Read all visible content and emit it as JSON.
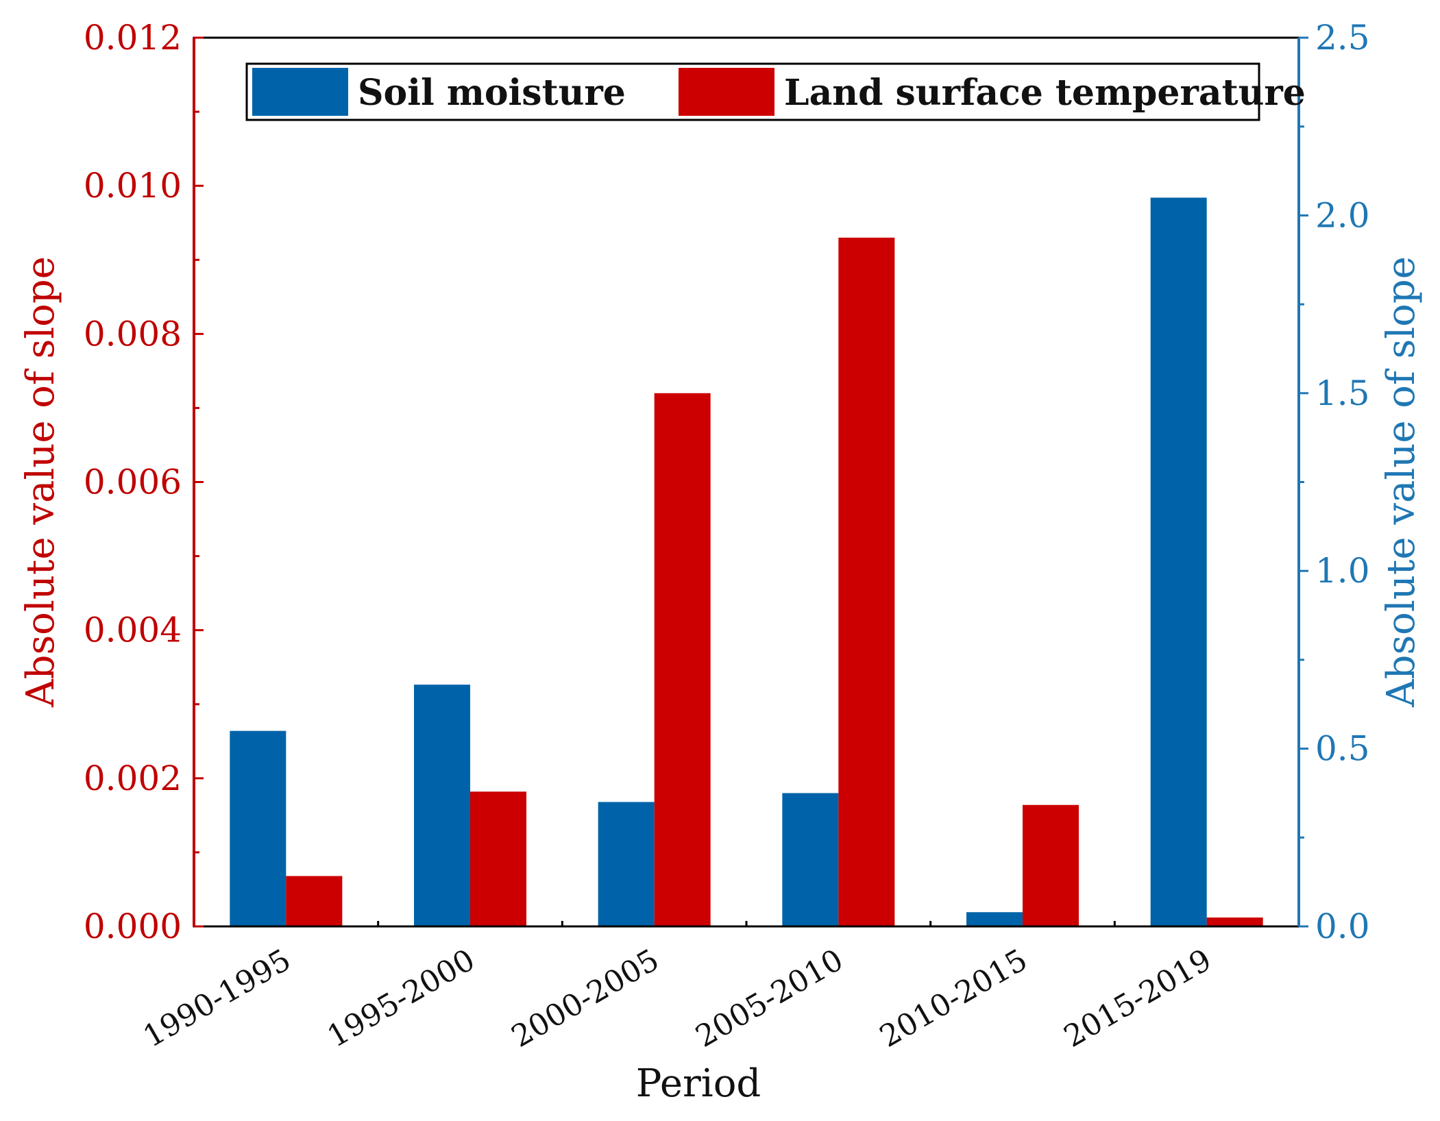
{
  "chart_data": {
    "type": "bar",
    "categories": [
      "1990-1995",
      "1995-2000",
      "2000-2005",
      "2005-2010",
      "2010-2015",
      "2015-2019"
    ],
    "series": [
      {
        "name": "Soil moisture",
        "axis": "right",
        "color": "#0063a9",
        "values": [
          0.55,
          0.68,
          0.35,
          0.375,
          0.04,
          2.05
        ]
      },
      {
        "name": "Land surface temperature",
        "axis": "left",
        "color": "#cc0000",
        "values": [
          0.00068,
          0.00182,
          0.0072,
          0.0093,
          0.00164,
          0.00012
        ]
      }
    ],
    "xlabel": "Period",
    "ylabel_left": "Absolute value of slope",
    "ylabel_right": "Absolute value of slope",
    "ylim_left": [
      0,
      0.012
    ],
    "ylim_right": [
      0,
      2.5
    ],
    "yticks_left": [
      "0.000",
      "0.002",
      "0.004",
      "0.006",
      "0.008",
      "0.010",
      "0.012"
    ],
    "yticks_right": [
      "0.0",
      "0.5",
      "1.0",
      "1.5",
      "2.0",
      "2.5"
    ],
    "left_axis_color": "#c00000",
    "right_axis_color": "#1f77b4",
    "legend_position": "top",
    "grid": false
  }
}
